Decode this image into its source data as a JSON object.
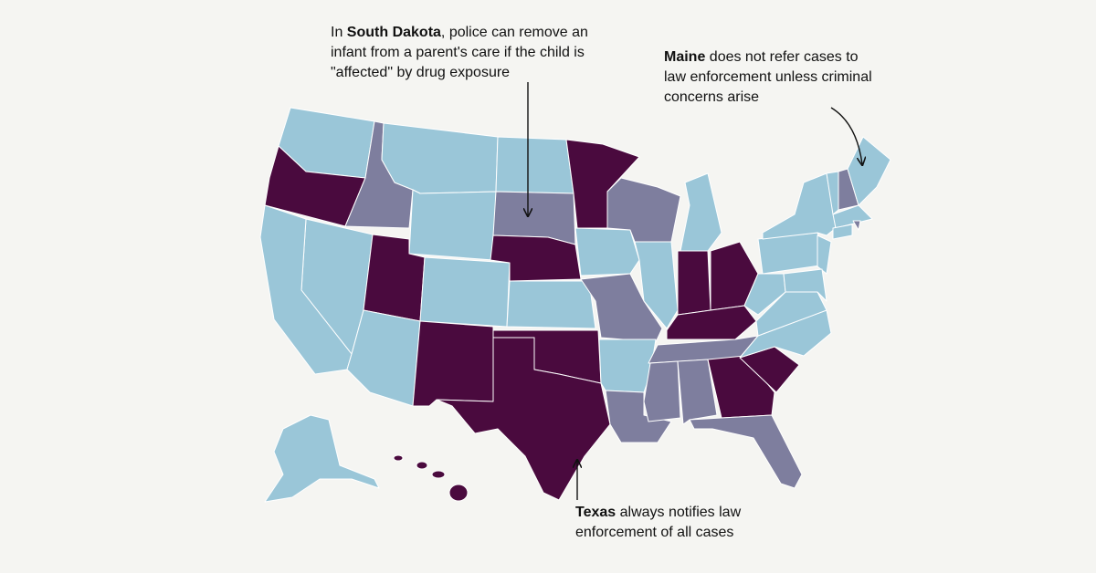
{
  "annotations": [
    {
      "prefix": "In ",
      "bold": "South Dakota",
      "text": ", police can remove an infant from a parent's care if the child is \"affected\" by drug exposure"
    },
    {
      "bold": "Maine",
      "text": " does not refer cases to law enforcement unless criminal concerns arise"
    },
    {
      "bold": "Texas",
      "text": " always notifies law enforcement of all cases"
    }
  ]
}
